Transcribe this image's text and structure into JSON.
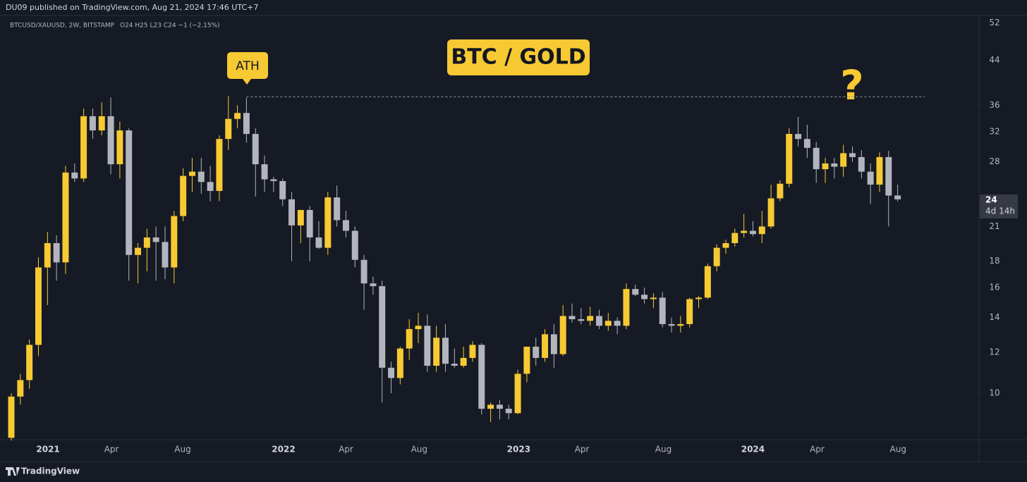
{
  "header": {
    "publisher": "DU09 published on TradingView.com, Aug 21, 2024 17:46 UTC+7",
    "symbol": "BTCUSD/XAUUSD, 2W, BITSTAMP",
    "ohlc": "O24 H25 L23 C24 −1 (−2.15%)"
  },
  "footer": {
    "brand": "TradingView"
  },
  "chart_data": {
    "type": "candlestick",
    "title": "BTC / GOLD",
    "log_scale": true,
    "up_color": "#f7c933",
    "down_color": "#b2b5be",
    "categories": [
      null,
      null,
      null,
      null,
      null,
      null,
      null,
      null,
      null,
      null,
      null,
      null,
      null,
      null,
      null,
      null,
      null,
      null,
      null,
      null,
      null,
      null,
      null,
      null,
      null,
      null,
      null,
      null,
      null,
      null,
      null,
      null,
      null,
      null,
      null,
      null,
      null,
      null,
      null,
      null,
      null,
      null,
      null,
      null,
      null,
      null,
      null,
      null,
      null,
      null,
      null,
      null,
      null,
      null,
      null,
      null,
      null,
      null,
      null,
      null,
      null,
      null,
      null,
      null,
      null,
      null,
      null,
      null,
      null,
      null,
      null,
      null,
      null,
      null,
      null,
      null,
      null,
      null,
      null,
      null,
      null,
      null,
      null,
      null,
      null,
      null,
      null,
      null,
      null,
      null,
      null,
      null,
      null,
      null,
      null,
      null,
      null,
      null,
      null
    ],
    "open": [
      8.2,
      9.85,
      10.6,
      12.4,
      17.5,
      19.5,
      17.9,
      26.7,
      26.0,
      34.3,
      32.2,
      34.3,
      27.7,
      32.2,
      18.5,
      19.1,
      20.0,
      19.6,
      17.5,
      22.0,
      26.3,
      26.8,
      25.6,
      24.6,
      31.0,
      33.9,
      34.8,
      31.7,
      27.7,
      25.9,
      25.7,
      23.7,
      21.1,
      22.6,
      20.0,
      19.1,
      23.9,
      21.6,
      20.6,
      18.1,
      16.3,
      16.1,
      11.2,
      10.7,
      12.2,
      13.3,
      13.5,
      11.3,
      12.8,
      11.4,
      11.3,
      11.7,
      12.4,
      9.33,
      9.5,
      9.33,
      9.15,
      10.9,
      12.3,
      11.7,
      13.0,
      11.9,
      14.1,
      13.9,
      13.8,
      14.1,
      13.5,
      13.8,
      13.5,
      15.9,
      15.5,
      15.2,
      15.3,
      13.6,
      13.5,
      13.6,
      15.2,
      15.3,
      17.6,
      19.1,
      19.5,
      20.4,
      20.6,
      20.3,
      21.0,
      23.8,
      25.4,
      31.7,
      31.0,
      29.8,
      27.1,
      27.8,
      27.4,
      29.1,
      28.6,
      26.8,
      25.3,
      28.6,
      24.1
    ],
    "high": [
      10.0,
      10.9,
      12.7,
      18.3,
      20.5,
      20.2,
      27.5,
      27.8,
      35.5,
      35.5,
      36.5,
      37.3,
      33.5,
      32.5,
      19.5,
      20.8,
      21.0,
      21.0,
      22.5,
      27.2,
      28.5,
      28.5,
      27.5,
      31.5,
      37.5,
      36.0,
      37.2,
      32.5,
      28.8,
      26.2,
      26.0,
      24.5,
      22.6,
      23.0,
      21.5,
      24.5,
      25.2,
      22.5,
      21.0,
      18.5,
      16.8,
      16.5,
      11.5,
      12.3,
      13.9,
      14.3,
      14.2,
      13.5,
      13.6,
      12.2,
      12.3,
      12.6,
      12.5,
      9.6,
      9.7,
      9.5,
      11.1,
      12.3,
      12.8,
      13.3,
      13.6,
      14.8,
      14.9,
      14.6,
      14.7,
      14.5,
      14.3,
      14.0,
      16.3,
      16.2,
      16.0,
      15.6,
      15.7,
      14.0,
      14.1,
      15.3,
      15.4,
      17.8,
      19.4,
      19.8,
      20.8,
      22.2,
      21.5,
      22.5,
      25.3,
      25.8,
      32.5,
      34.2,
      33.0,
      30.6,
      28.5,
      28.5,
      30.2,
      30.0,
      29.5,
      27.8,
      29.2,
      29.4,
      25.3
    ],
    "low": [
      8.1,
      9.5,
      10.2,
      11.8,
      14.8,
      16.5,
      17.0,
      25.6,
      25.6,
      31.0,
      31.5,
      26.5,
      26.0,
      16.5,
      16.3,
      17.2,
      16.5,
      16.6,
      16.3,
      21.5,
      24.5,
      24.3,
      23.5,
      23.5,
      29.5,
      32.5,
      30.5,
      24.0,
      24.5,
      24.5,
      23.0,
      18.0,
      19.5,
      18.0,
      19.0,
      18.5,
      21.0,
      20.0,
      17.5,
      14.5,
      15.5,
      9.6,
      10.0,
      10.4,
      11.6,
      12.5,
      11.0,
      11.0,
      11.0,
      11.2,
      11.2,
      11.5,
      9.1,
      8.8,
      8.9,
      8.9,
      9.1,
      10.5,
      11.3,
      11.5,
      11.2,
      11.8,
      13.7,
      13.6,
      13.5,
      13.3,
      13.2,
      13.0,
      13.3,
      15.4,
      14.9,
      14.6,
      13.4,
      13.1,
      13.1,
      13.4,
      14.6,
      15.2,
      17.2,
      18.6,
      19.2,
      20.0,
      20.1,
      19.5,
      20.8,
      23.5,
      25.0,
      30.0,
      28.5,
      25.5,
      25.5,
      26.0,
      26.2,
      28.0,
      26.0,
      23.2,
      24.5,
      21.0,
      23.5
    ],
    "close": [
      9.85,
      10.6,
      12.4,
      17.5,
      19.5,
      17.9,
      26.7,
      26.0,
      34.3,
      32.2,
      34.3,
      27.7,
      32.2,
      18.5,
      19.1,
      20.0,
      19.6,
      17.5,
      22.0,
      26.3,
      26.8,
      25.6,
      24.6,
      31.0,
      33.9,
      34.8,
      31.7,
      27.7,
      25.9,
      25.7,
      23.7,
      21.1,
      22.6,
      20.0,
      19.1,
      23.9,
      21.6,
      20.6,
      18.1,
      16.3,
      16.1,
      11.2,
      10.7,
      12.2,
      13.3,
      13.5,
      11.3,
      12.8,
      11.4,
      11.3,
      11.7,
      12.4,
      9.33,
      9.5,
      9.33,
      9.15,
      10.9,
      12.3,
      11.7,
      13.0,
      11.9,
      14.1,
      13.9,
      13.8,
      14.1,
      13.5,
      13.8,
      13.5,
      15.9,
      15.5,
      15.2,
      15.3,
      13.6,
      13.5,
      13.6,
      15.2,
      15.3,
      17.6,
      19.1,
      19.5,
      20.4,
      20.6,
      20.3,
      21.0,
      23.8,
      25.4,
      31.7,
      31.0,
      29.8,
      27.1,
      27.8,
      27.4,
      29.1,
      28.6,
      26.8,
      25.3,
      28.6,
      24.1,
      23.7
    ],
    "xlim": [
      -0.47,
      107.0
    ],
    "xticks": [
      {
        "value": 4.06,
        "label": "2021"
      },
      {
        "value": 11.08,
        "label": "Apr"
      },
      {
        "value": 18.95,
        "label": "Aug"
      },
      {
        "value": 30.1,
        "label": "2022"
      },
      {
        "value": 37.0,
        "label": "Apr"
      },
      {
        "value": 45.1,
        "label": "Aug"
      },
      {
        "value": 56.1,
        "label": "2023"
      },
      {
        "value": 63.1,
        "label": "Apr"
      },
      {
        "value": 72.1,
        "label": "Aug"
      },
      {
        "value": 82.0,
        "label": "2024"
      },
      {
        "value": 89.1,
        "label": "Apr"
      },
      {
        "value": 98.05,
        "label": "Aug"
      }
    ],
    "ylim": [
      8.13,
      53.7
    ],
    "yticks": [
      10,
      12,
      14,
      16,
      18,
      21,
      28,
      32,
      36,
      44,
      52
    ],
    "last_price": 24,
    "countdown": "4d 14h",
    "annotations": {
      "ath": "ATH",
      "question": "?"
    },
    "ath_line": {
      "value": 37.4,
      "x": [
        26,
        101
      ]
    }
  }
}
